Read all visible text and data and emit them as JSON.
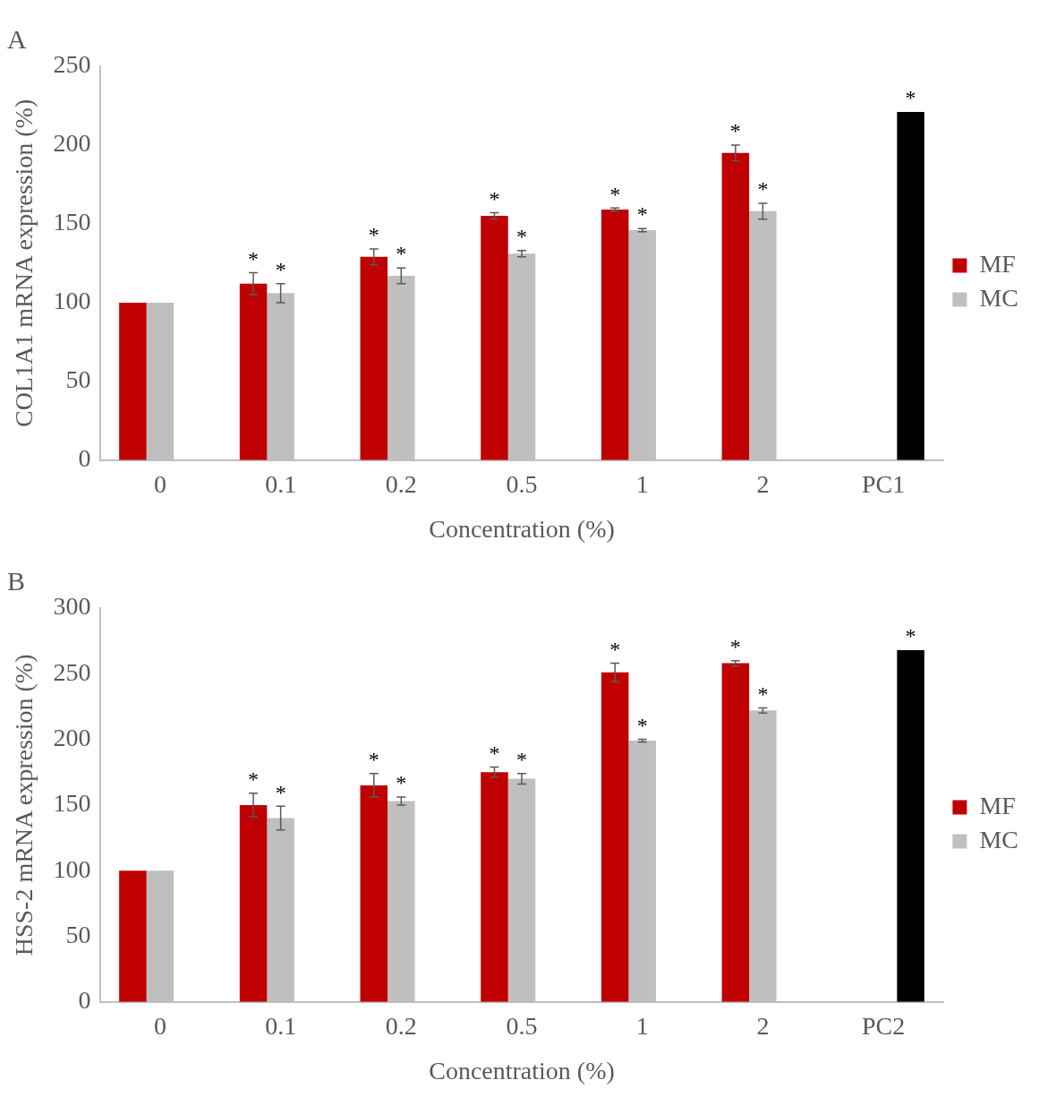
{
  "chart_data": [
    {
      "type": "bar",
      "title": "A",
      "xlabel": "Concentration (%)",
      "ylabel": "COL1A1 mRNA expression (%)",
      "categories": [
        "0",
        "0.1",
        "0.2",
        "0.5",
        "1",
        "2",
        "PC1"
      ],
      "ylim": [
        0,
        250
      ],
      "yticks": [
        0,
        50,
        100,
        150,
        200,
        250
      ],
      "grid": false,
      "legend": "right",
      "series": [
        {
          "name": "MF",
          "color": "#c00000",
          "values": [
            100,
            112,
            129,
            155,
            159,
            195,
            null
          ],
          "errors": [
            null,
            7,
            5,
            2,
            1,
            5,
            null
          ],
          "value_labels": [
            null,
            "*",
            "*",
            "*",
            "*",
            "*",
            null
          ]
        },
        {
          "name": "MC",
          "color": "#bfbfbf",
          "values": [
            100,
            106,
            117,
            131,
            146,
            158,
            null
          ],
          "errors": [
            null,
            6,
            5,
            2,
            1,
            5,
            null
          ],
          "value_labels": [
            null,
            "*",
            "*",
            "*",
            "*",
            "*",
            null
          ]
        },
        {
          "color": "#000000",
          "values": [
            null,
            null,
            null,
            null,
            null,
            null,
            221
          ],
          "value_labels": [
            null,
            null,
            null,
            null,
            null,
            null,
            "*"
          ]
        }
      ]
    },
    {
      "type": "bar",
      "title": "B",
      "xlabel": "Concentration (%)",
      "ylabel": "HSS-2 mRNA expression (%)",
      "categories": [
        "0",
        "0.1",
        "0.2",
        "0.5",
        "1",
        "2",
        "PC2"
      ],
      "ylim": [
        0,
        300
      ],
      "yticks": [
        0,
        50,
        100,
        150,
        200,
        250,
        300
      ],
      "grid": false,
      "legend": "right",
      "series": [
        {
          "name": "MF",
          "color": "#c00000",
          "values": [
            100,
            150,
            165,
            175,
            251,
            258,
            null
          ],
          "errors": [
            null,
            9,
            9,
            4,
            7,
            2,
            null
          ],
          "value_labels": [
            null,
            "*",
            "*",
            "*",
            "*",
            "*",
            null
          ]
        },
        {
          "name": "MC",
          "color": "#bfbfbf",
          "values": [
            100,
            140,
            153,
            170,
            199,
            222,
            null
          ],
          "errors": [
            null,
            9,
            3,
            4,
            1,
            2,
            null
          ],
          "value_labels": [
            null,
            "*",
            "*",
            "*",
            "*",
            "*",
            null
          ]
        },
        {
          "color": "#000000",
          "values": [
            null,
            null,
            null,
            null,
            null,
            null,
            268
          ],
          "value_labels": [
            null,
            null,
            null,
            null,
            null,
            null,
            "*"
          ]
        }
      ]
    }
  ]
}
